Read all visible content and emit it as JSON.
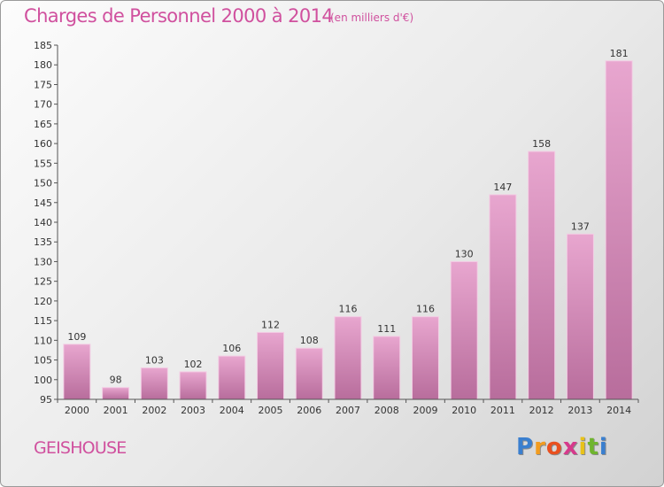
{
  "chart_data": {
    "type": "bar",
    "title": "Charges de Personnel 2000 à 2014",
    "subtitle": "(en milliers d'€)",
    "categories": [
      "2000",
      "2001",
      "2002",
      "2003",
      "2004",
      "2005",
      "2006",
      "2007",
      "2008",
      "2009",
      "2010",
      "2011",
      "2012",
      "2013",
      "2014"
    ],
    "values": [
      109,
      98,
      103,
      102,
      106,
      112,
      108,
      116,
      111,
      116,
      130,
      147,
      158,
      137,
      181
    ],
    "ylim": [
      95,
      185
    ],
    "yticks": [
      95,
      100,
      105,
      110,
      115,
      120,
      125,
      130,
      135,
      140,
      145,
      150,
      155,
      160,
      165,
      170,
      175,
      180,
      185
    ],
    "xlabel": "",
    "ylabel": "",
    "grid": false
  },
  "location": "GEISHOUSE",
  "logo": {
    "letters": [
      "P",
      "r",
      "o",
      "x",
      "i",
      "t",
      "i"
    ],
    "colors": [
      "#3a7fcf",
      "#f29c1f",
      "#e9501f",
      "#d63a8c",
      "#e8c21a",
      "#6fb52e",
      "#3a7fcf"
    ]
  },
  "colors": {
    "accent": "#d0509e",
    "bar_top": "#e8a6cf",
    "bar_bottom": "#b86d9c",
    "axis": "#555555"
  }
}
